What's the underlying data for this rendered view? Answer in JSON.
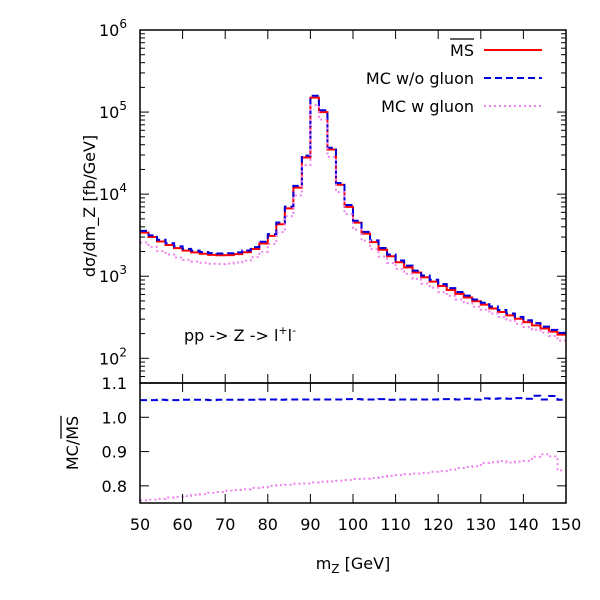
{
  "chart_data": [
    {
      "type": "line",
      "panel": "main",
      "title": "",
      "ylabel": "dσ/dm_Z [fb/GeV]",
      "yscale": "log",
      "ylim": [
        50,
        1000000
      ],
      "xlim": [
        50,
        150
      ],
      "y_ticks": [
        100,
        1000,
        10000,
        100000,
        1000000
      ],
      "y_tick_labels": [
        {
          "base": "10",
          "exp": "2"
        },
        {
          "base": "10",
          "exp": "3"
        },
        {
          "base": "10",
          "exp": "4"
        },
        {
          "base": "10",
          "exp": "5"
        },
        {
          "base": "10",
          "exp": "6"
        }
      ],
      "annotation": {
        "text": "pp -> Z -> l",
        "sup1": "+",
        "mid": "l",
        "sup2": "-"
      },
      "bin_edges": [
        50,
        52,
        54,
        56,
        58,
        60,
        62,
        64,
        66,
        68,
        70,
        72,
        74,
        76,
        78,
        80,
        82,
        84,
        86,
        88,
        90,
        92,
        94,
        96,
        98,
        100,
        102,
        104,
        106,
        108,
        110,
        112,
        114,
        116,
        118,
        120,
        122,
        124,
        126,
        128,
        130,
        132,
        134,
        136,
        138,
        140,
        142,
        144,
        146,
        148,
        150
      ],
      "legend": [
        "MS",
        "MC w/o gluon",
        "MC w gluon"
      ],
      "legend_position": "top-right",
      "series": [
        {
          "name": "MS",
          "color": "#ff0000",
          "dash": "",
          "values": [
            3400,
            3000,
            2650,
            2400,
            2200,
            2050,
            1950,
            1880,
            1820,
            1800,
            1810,
            1860,
            1960,
            2150,
            2500,
            3100,
            4300,
            6700,
            12000,
            28000,
            150000,
            100000,
            35000,
            13000,
            7000,
            4500,
            3300,
            2600,
            2100,
            1750,
            1480,
            1280,
            1110,
            970,
            860,
            760,
            680,
            610,
            550,
            495,
            450,
            405,
            367,
            333,
            303,
            276,
            252,
            231,
            211,
            194
          ]
        },
        {
          "name": "MC w/o gluon",
          "color": "#0000dd",
          "dash": "7,4",
          "values": [
            3570,
            3150,
            2785,
            2520,
            2310,
            2155,
            2050,
            1975,
            1912,
            1892,
            1902,
            1955,
            2060,
            2260,
            2630,
            3260,
            4520,
            7050,
            12620,
            29450,
            157800,
            105200,
            36800,
            13680,
            7370,
            4740,
            3470,
            2735,
            2210,
            1840,
            1557,
            1347,
            1168,
            1020,
            905,
            800,
            716,
            642,
            580,
            521,
            475,
            427,
            387,
            351,
            320,
            291,
            268,
            243,
            222,
            204
          ]
        },
        {
          "name": "MC w gluon",
          "color": "#ee82ee",
          "dash": "2,3",
          "values": [
            2580,
            2280,
            2020,
            1840,
            1690,
            1580,
            1510,
            1460,
            1420,
            1410,
            1425,
            1470,
            1550,
            1710,
            1990,
            2480,
            3450,
            5380,
            9670,
            22600,
            121500,
            81200,
            28450,
            10600,
            5720,
            3690,
            2710,
            2140,
            1735,
            1450,
            1230,
            1067,
            928,
            813,
            723,
            641,
            576,
            520,
            470,
            424,
            390,
            352,
            320,
            289,
            264,
            241,
            223,
            206,
            187,
            164
          ]
        }
      ]
    },
    {
      "type": "line",
      "panel": "ratio",
      "ylabel": "MC/MS",
      "xlabel": "m_Z [GeV]",
      "xlabel_base": "m",
      "xlabel_sub": "Z",
      "xlabel_rest": " [GeV]",
      "ylim": [
        0.75,
        1.1
      ],
      "y_ticks": [
        0.8,
        0.9,
        1.0,
        1.1
      ],
      "y_tick_labels": [
        "0.8",
        "0.9",
        "1.0",
        "1.1"
      ],
      "x_ticks": [
        50,
        60,
        70,
        80,
        90,
        100,
        110,
        120,
        130,
        140,
        150
      ],
      "x_tick_labels": [
        "50",
        "60",
        "70",
        "80",
        "90",
        "100",
        "110",
        "120",
        "130",
        "140",
        "150"
      ],
      "bin_edges": [
        50,
        52,
        54,
        56,
        58,
        60,
        62,
        64,
        66,
        68,
        70,
        72,
        74,
        76,
        78,
        80,
        82,
        84,
        86,
        88,
        90,
        92,
        94,
        96,
        98,
        100,
        102,
        104,
        106,
        108,
        110,
        112,
        114,
        116,
        118,
        120,
        122,
        124,
        126,
        128,
        130,
        132,
        134,
        136,
        138,
        140,
        142,
        144,
        146,
        148,
        150
      ],
      "series": [
        {
          "name": "MC w/o gluon / MS",
          "color": "#0000dd",
          "dash": "7,4",
          "values": [
            1.05,
            1.05,
            1.051,
            1.05,
            1.05,
            1.051,
            1.051,
            1.051,
            1.05,
            1.051,
            1.051,
            1.051,
            1.051,
            1.051,
            1.052,
            1.052,
            1.051,
            1.052,
            1.052,
            1.052,
            1.052,
            1.052,
            1.052,
            1.052,
            1.053,
            1.053,
            1.052,
            1.052,
            1.053,
            1.051,
            1.052,
            1.052,
            1.052,
            1.052,
            1.052,
            1.053,
            1.053,
            1.052,
            1.054,
            1.052,
            1.055,
            1.054,
            1.055,
            1.054,
            1.056,
            1.054,
            1.063,
            1.052,
            1.062,
            1.051
          ]
        },
        {
          "name": "MC w gluon / MS",
          "color": "#ee82ee",
          "dash": "2,3",
          "values": [
            0.758,
            0.76,
            0.762,
            0.766,
            0.768,
            0.77,
            0.774,
            0.776,
            0.78,
            0.782,
            0.786,
            0.788,
            0.79,
            0.794,
            0.796,
            0.8,
            0.802,
            0.803,
            0.806,
            0.807,
            0.81,
            0.812,
            0.813,
            0.815,
            0.817,
            0.82,
            0.821,
            0.823,
            0.826,
            0.829,
            0.831,
            0.834,
            0.836,
            0.838,
            0.841,
            0.843,
            0.847,
            0.852,
            0.855,
            0.857,
            0.867,
            0.869,
            0.872,
            0.868,
            0.871,
            0.873,
            0.885,
            0.892,
            0.886,
            0.845
          ]
        }
      ]
    }
  ]
}
